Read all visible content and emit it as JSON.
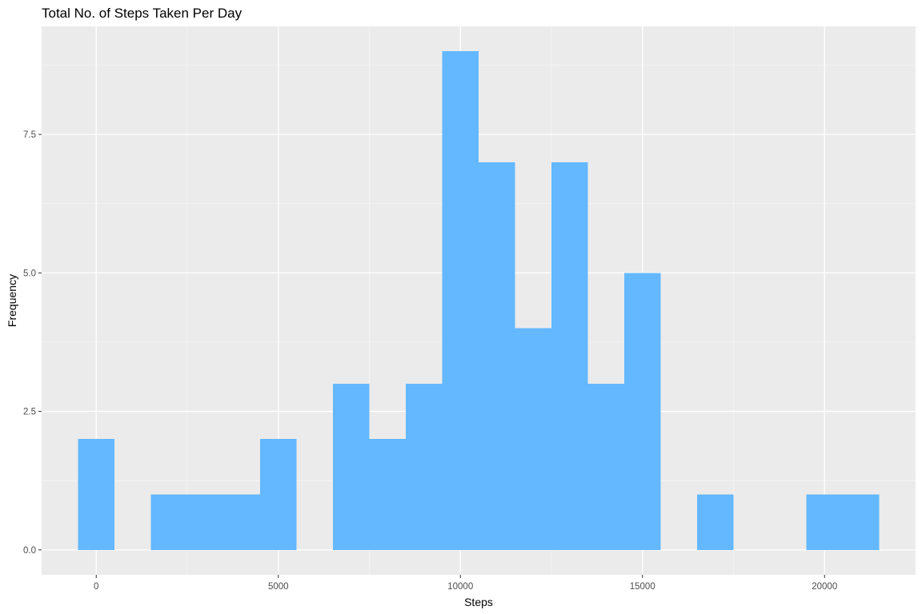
{
  "chart_data": {
    "type": "bar",
    "title": "Total No. of Steps Taken Per Day",
    "xlabel": "Steps",
    "ylabel": "Frequency",
    "bin_width": 1000,
    "bins": [
      {
        "x_start": -500,
        "x_end": 500,
        "count": 2
      },
      {
        "x_start": 500,
        "x_end": 1500,
        "count": 0
      },
      {
        "x_start": 1500,
        "x_end": 2500,
        "count": 1
      },
      {
        "x_start": 2500,
        "x_end": 3500,
        "count": 1
      },
      {
        "x_start": 3500,
        "x_end": 4500,
        "count": 1
      },
      {
        "x_start": 4500,
        "x_end": 5500,
        "count": 2
      },
      {
        "x_start": 5500,
        "x_end": 6500,
        "count": 0
      },
      {
        "x_start": 6500,
        "x_end": 7500,
        "count": 3
      },
      {
        "x_start": 7500,
        "x_end": 8500,
        "count": 2
      },
      {
        "x_start": 8500,
        "x_end": 9500,
        "count": 3
      },
      {
        "x_start": 9500,
        "x_end": 10500,
        "count": 9
      },
      {
        "x_start": 10500,
        "x_end": 11500,
        "count": 7
      },
      {
        "x_start": 11500,
        "x_end": 12500,
        "count": 4
      },
      {
        "x_start": 12500,
        "x_end": 13500,
        "count": 7
      },
      {
        "x_start": 13500,
        "x_end": 14500,
        "count": 3
      },
      {
        "x_start": 14500,
        "x_end": 15500,
        "count": 5
      },
      {
        "x_start": 15500,
        "x_end": 16500,
        "count": 0
      },
      {
        "x_start": 16500,
        "x_end": 17500,
        "count": 1
      },
      {
        "x_start": 17500,
        "x_end": 18500,
        "count": 0
      },
      {
        "x_start": 18500,
        "x_end": 19500,
        "count": 0
      },
      {
        "x_start": 19500,
        "x_end": 20500,
        "count": 1
      },
      {
        "x_start": 20500,
        "x_end": 21500,
        "count": 1
      }
    ],
    "xlim": [
      -1500,
      22500
    ],
    "ylim": [
      -0.45,
      9.45
    ],
    "x_ticks": [
      0,
      5000,
      10000,
      15000,
      20000
    ],
    "x_tick_labels": [
      "0",
      "5000",
      "10000",
      "15000",
      "20000"
    ],
    "x_minor_ticks": [
      2500,
      7500,
      12500,
      17500,
      22500
    ],
    "y_ticks": [
      0,
      2.5,
      5,
      7.5
    ],
    "y_tick_labels": [
      "0.0",
      "2.5",
      "5.0",
      "7.5"
    ],
    "y_minor_ticks": [
      1.25,
      3.75,
      6.25,
      8.75
    ],
    "grid": true,
    "legend": "none",
    "colors": {
      "bar_fill": "#63b8ff",
      "panel_bg": "#ebebeb",
      "grid_major": "#ffffff",
      "grid_minor": "#f5f5f5",
      "tick_text": "#4d4d4d",
      "tick_mark": "#333333"
    }
  }
}
